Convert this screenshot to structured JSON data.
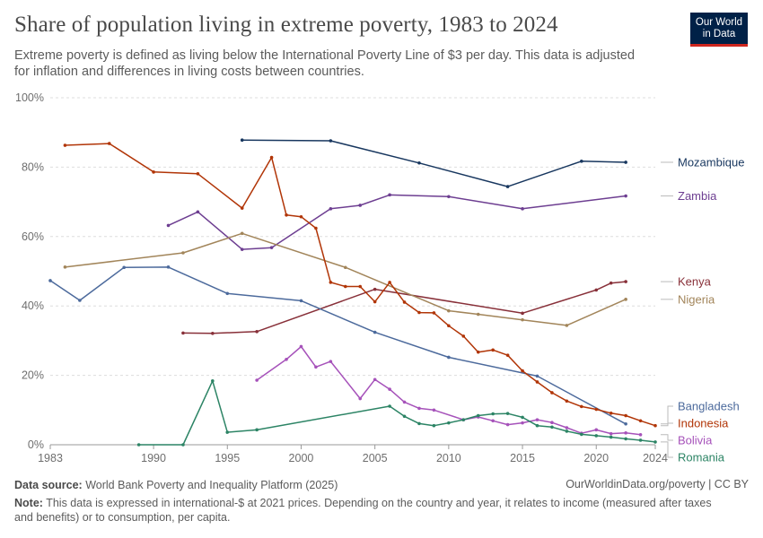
{
  "header": {
    "title": "Share of population living in extreme poverty, 1983 to 2024",
    "subtitle": "Extreme poverty is defined as living below the International Poverty Line of $3 per day. This data is adjusted for inflation and differences in living costs between countries."
  },
  "logo": {
    "line1": "Our World",
    "line2": "in Data"
  },
  "footer": {
    "source_label": "Data source:",
    "source_text": "World Bank Poverty and Inequality Platform (2025)",
    "link": "OurWorldinData.org/poverty | CC BY",
    "note_label": "Note:",
    "note_text": "This data is expressed in international-$ at 2021 prices. Depending on the country and year, it relates to income (measured after taxes and benefits) or to consumption, per capita."
  },
  "chart_data": {
    "type": "line",
    "xlim": [
      1983,
      2024
    ],
    "ylim": [
      0,
      100
    ],
    "x_ticks": [
      1983,
      1990,
      1995,
      2000,
      2005,
      2010,
      2015,
      2020,
      2024
    ],
    "y_ticks": [
      0,
      20,
      40,
      60,
      80,
      100
    ],
    "y_tick_labels": [
      "0%",
      "20%",
      "40%",
      "60%",
      "80%",
      "100%"
    ],
    "grid": "horizontal dashed",
    "legend": "right, labels at line ends",
    "series": [
      {
        "name": "Mozambique",
        "color": "#18375f",
        "points": [
          [
            1996,
            87.8
          ],
          [
            2002,
            87.6
          ],
          [
            2008,
            81.2
          ],
          [
            2014,
            74.4
          ],
          [
            2019,
            81.7
          ],
          [
            2022,
            81.4
          ]
        ]
      },
      {
        "name": "Zambia",
        "color": "#6d3e91",
        "points": [
          [
            1991,
            63.2
          ],
          [
            1993,
            67.1
          ],
          [
            1996,
            56.3
          ],
          [
            1998,
            56.8
          ],
          [
            2002,
            68.0
          ],
          [
            2004,
            69.0
          ],
          [
            2006,
            72.0
          ],
          [
            2010,
            71.5
          ],
          [
            2015,
            68.0
          ],
          [
            2022,
            71.7
          ]
        ]
      },
      {
        "name": "Kenya",
        "color": "#883039",
        "points": [
          [
            1992,
            32.2
          ],
          [
            1994,
            32.1
          ],
          [
            1997,
            32.6
          ],
          [
            2005,
            44.8
          ],
          [
            2015,
            37.9
          ],
          [
            2020,
            44.6
          ],
          [
            2021,
            46.6
          ],
          [
            2022,
            47.0
          ]
        ]
      },
      {
        "name": "Nigeria",
        "color": "#a2855a",
        "points": [
          [
            1984,
            51.2
          ],
          [
            1992,
            55.3
          ],
          [
            1996,
            60.9
          ],
          [
            2003,
            51.1
          ],
          [
            2010,
            38.6
          ],
          [
            2012,
            37.6
          ],
          [
            2015,
            36.0
          ],
          [
            2018,
            34.4
          ],
          [
            2022,
            41.9
          ]
        ]
      },
      {
        "name": "Bangladesh",
        "color": "#4c6a9c",
        "points": [
          [
            1983,
            47.3
          ],
          [
            1985,
            41.6
          ],
          [
            1988,
            51.1
          ],
          [
            1991,
            51.2
          ],
          [
            1995,
            43.6
          ],
          [
            2000,
            41.5
          ],
          [
            2005,
            32.4
          ],
          [
            2010,
            25.2
          ],
          [
            2016,
            19.8
          ],
          [
            2022,
            6.0
          ]
        ]
      },
      {
        "name": "Indonesia",
        "color": "#b13507",
        "points": [
          [
            1984,
            86.3
          ],
          [
            1987,
            86.8
          ],
          [
            1990,
            78.6
          ],
          [
            1993,
            78.1
          ],
          [
            1996,
            68.2
          ],
          [
            1998,
            82.8
          ],
          [
            1999,
            66.2
          ],
          [
            2000,
            65.7
          ],
          [
            2001,
            62.4
          ],
          [
            2002,
            46.8
          ],
          [
            2003,
            45.6
          ],
          [
            2004,
            45.6
          ],
          [
            2005,
            41.2
          ],
          [
            2006,
            46.8
          ],
          [
            2007,
            41.1
          ],
          [
            2008,
            38.1
          ],
          [
            2009,
            38.0
          ],
          [
            2010,
            34.3
          ],
          [
            2011,
            31.3
          ],
          [
            2012,
            26.7
          ],
          [
            2013,
            27.3
          ],
          [
            2014,
            25.8
          ],
          [
            2015,
            21.3
          ],
          [
            2016,
            18.1
          ],
          [
            2017,
            15.0
          ],
          [
            2018,
            12.6
          ],
          [
            2019,
            11.0
          ],
          [
            2020,
            10.2
          ],
          [
            2021,
            9.1
          ],
          [
            2022,
            8.4
          ],
          [
            2023,
            6.9
          ],
          [
            2024,
            5.5
          ]
        ]
      },
      {
        "name": "Bolivia",
        "color": "#a652ba",
        "points": [
          [
            1997,
            18.6
          ],
          [
            1999,
            24.6
          ],
          [
            2000,
            28.3
          ],
          [
            2001,
            22.4
          ],
          [
            2002,
            24.0
          ],
          [
            2004,
            13.3
          ],
          [
            2005,
            18.8
          ],
          [
            2006,
            16.0
          ],
          [
            2007,
            12.3
          ],
          [
            2008,
            10.5
          ],
          [
            2009,
            10.0
          ],
          [
            2011,
            7.2
          ],
          [
            2012,
            8.0
          ],
          [
            2013,
            6.9
          ],
          [
            2014,
            5.8
          ],
          [
            2015,
            6.3
          ],
          [
            2016,
            7.2
          ],
          [
            2017,
            6.4
          ],
          [
            2018,
            4.9
          ],
          [
            2019,
            3.3
          ],
          [
            2020,
            4.3
          ],
          [
            2021,
            3.2
          ],
          [
            2022,
            3.4
          ],
          [
            2023,
            2.9
          ]
        ]
      },
      {
        "name": "Romania",
        "color": "#2c8465",
        "points": [
          [
            1989,
            0.0
          ],
          [
            1992,
            0.0
          ],
          [
            1994,
            18.4
          ],
          [
            1995,
            3.6
          ],
          [
            1997,
            4.3
          ],
          [
            2006,
            11.1
          ],
          [
            2007,
            8.2
          ],
          [
            2008,
            6.1
          ],
          [
            2009,
            5.5
          ],
          [
            2010,
            6.3
          ],
          [
            2011,
            7.2
          ],
          [
            2012,
            8.4
          ],
          [
            2013,
            8.9
          ],
          [
            2014,
            9.0
          ],
          [
            2015,
            7.9
          ],
          [
            2016,
            5.5
          ],
          [
            2017,
            5.1
          ],
          [
            2018,
            3.9
          ],
          [
            2019,
            3.0
          ],
          [
            2020,
            2.6
          ],
          [
            2021,
            2.2
          ],
          [
            2022,
            1.7
          ],
          [
            2023,
            1.3
          ],
          [
            2024,
            0.8
          ]
        ]
      }
    ]
  }
}
